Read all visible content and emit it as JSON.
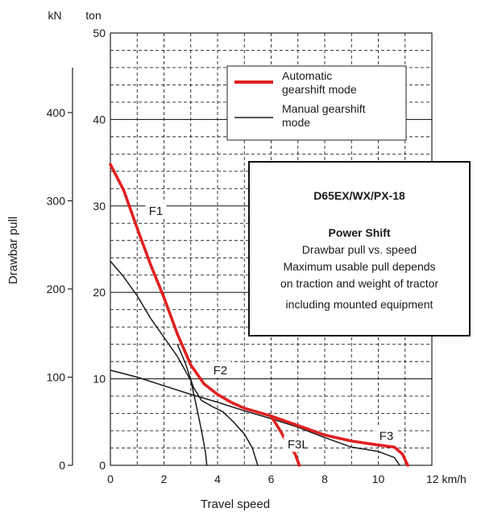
{
  "chart_data": {
    "type": "line",
    "xlabel": "Travel speed",
    "ylabel": "Drawbar pull",
    "x_unit_label": "12 km/h",
    "y_unit_left": "kN",
    "y_unit_right": "ton",
    "xlim": [
      0,
      12
    ],
    "ylim_ton": [
      0,
      50
    ],
    "ylim_kN": [
      0,
      490.3
    ],
    "x_ticks": [
      "0",
      "2",
      "4",
      "6",
      "8",
      "10"
    ],
    "x_tick_values": [
      0,
      2,
      4,
      6,
      8,
      10
    ],
    "ton_ticks": [
      "0",
      "10",
      "20",
      "30",
      "40",
      "50"
    ],
    "ton_tick_values": [
      0,
      10,
      20,
      30,
      40,
      50
    ],
    "kN_ticks": [
      "0",
      "100",
      "200",
      "300",
      "400"
    ],
    "kN_tick_values": [
      0,
      100,
      200,
      300,
      400
    ],
    "grid": true,
    "legend": {
      "position": "top-right",
      "entries": [
        {
          "label_lines": [
            "Automatic",
            "gearshift mode"
          ],
          "color": "#e02020"
        },
        {
          "label_lines": [
            "Manual gearshift",
            "mode"
          ],
          "color": "#1a1a1a"
        }
      ]
    },
    "info_box": {
      "title": "D65EX/WX/PX-18",
      "subtitle": "Power Shift",
      "lines": [
        "Drawbar pull vs. speed",
        "Maximum usable pull depends",
        "on traction and weight of tractor",
        "including mounted equipment"
      ]
    },
    "gear_labels": [
      {
        "text": "F1",
        "x": 1.7,
        "y": 29.4
      },
      {
        "text": "F2",
        "x": 4.1,
        "y": 11.0
      },
      {
        "text": "F3L",
        "x": 7.0,
        "y": 2.4
      },
      {
        "text": "F3",
        "x": 10.3,
        "y": 3.4
      }
    ],
    "series": [
      {
        "name": "Automatic gearshift mode",
        "color": "#e02020",
        "points": [
          [
            0,
            34.8
          ],
          [
            0.5,
            31.8
          ],
          [
            1,
            27.4
          ],
          [
            1.5,
            23.2
          ],
          [
            2,
            19.4
          ],
          [
            2.5,
            15.2
          ],
          [
            3,
            11.6
          ],
          [
            3.5,
            9.4
          ],
          [
            4,
            8.2
          ],
          [
            4.5,
            7.3
          ],
          [
            5,
            6.6
          ],
          [
            6,
            5.7
          ],
          [
            7,
            4.6
          ],
          [
            8,
            3.5
          ],
          [
            9,
            2.8
          ],
          [
            10,
            2.35
          ],
          [
            10.6,
            2.1
          ],
          [
            10.9,
            1.3
          ],
          [
            11.1,
            0
          ]
        ]
      },
      {
        "name": "F3L (automatic)",
        "color": "#e02020",
        "points": [
          [
            6,
            5.7
          ],
          [
            6.3,
            4.2
          ],
          [
            6.6,
            2.6
          ],
          [
            6.9,
            1.3
          ],
          [
            7.05,
            0
          ]
        ]
      },
      {
        "name": "Manual F1",
        "color": "#1a1a1a",
        "points": [
          [
            0,
            23.6
          ],
          [
            0.5,
            21.8
          ],
          [
            1,
            19.6
          ],
          [
            1.5,
            17.0
          ],
          [
            2,
            14.8
          ],
          [
            2.5,
            12.6
          ],
          [
            3,
            9.8
          ],
          [
            3.2,
            7.0
          ],
          [
            3.4,
            4.0
          ],
          [
            3.55,
            1.5
          ],
          [
            3.6,
            0
          ]
        ]
      },
      {
        "name": "Manual F2",
        "color": "#1a1a1a",
        "points": [
          [
            2.5,
            14.0
          ],
          [
            2.8,
            11.8
          ],
          [
            3.1,
            9.0
          ],
          [
            3.4,
            7.5
          ],
          [
            3.8,
            6.8
          ],
          [
            4.2,
            6.2
          ],
          [
            4.6,
            5.0
          ],
          [
            5.0,
            3.6
          ],
          [
            5.3,
            2.0
          ],
          [
            5.5,
            0
          ]
        ]
      },
      {
        "name": "Manual F3",
        "color": "#1a1a1a",
        "points": [
          [
            0,
            11.0
          ],
          [
            1,
            10.2
          ],
          [
            2,
            9.2
          ],
          [
            3,
            8.2
          ],
          [
            4,
            7.3
          ],
          [
            5,
            6.3
          ],
          [
            6,
            5.4
          ],
          [
            7,
            4.4
          ],
          [
            8,
            3.2
          ],
          [
            9,
            2.1
          ],
          [
            10,
            1.6
          ],
          [
            10.6,
            0.9
          ],
          [
            10.8,
            0
          ]
        ]
      }
    ]
  }
}
